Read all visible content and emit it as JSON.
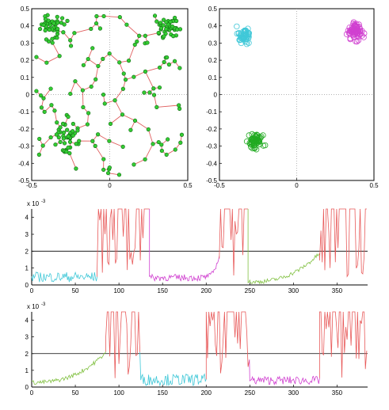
{
  "colors": {
    "green": "#22aa22",
    "green_fill": "#33cc33",
    "edge_red": "#e06060",
    "cyan": "#40c8d8",
    "magenta": "#d040d0",
    "green_plot": "#80c040",
    "red_plot": "#e85a5a",
    "threshold": "#000000"
  },
  "chart_data": [
    {
      "type": "scatter",
      "variant": "minimum-spanning-graph",
      "xlim": [
        -0.5,
        0.5
      ],
      "ylim": [
        -0.5,
        0.5
      ],
      "xticks": [
        "-0.5",
        "0",
        "0.5"
      ],
      "yticks": [
        "0.5",
        "0.4",
        "0.3",
        "0.2",
        "0.1",
        "0",
        "-0.1",
        "-0.2",
        "-0.3",
        "-0.4",
        "-0.5"
      ],
      "clusters": [
        {
          "cx": -0.38,
          "cy": 0.4,
          "r": 0.09,
          "n": 40
        },
        {
          "cx": 0.38,
          "cy": 0.38,
          "r": 0.09,
          "n": 40
        },
        {
          "cx": -0.27,
          "cy": -0.25,
          "r": 0.11,
          "n": 45
        }
      ],
      "background_points": 110
    },
    {
      "type": "scatter",
      "xlim": [
        -0.5,
        0.5
      ],
      "ylim": [
        -0.5,
        0.5
      ],
      "xticks": [
        "-0.5",
        "0",
        "0.5"
      ],
      "yticks": [
        "0.5",
        "0.4",
        "0.3",
        "0.2",
        "0.1",
        "0",
        "-0.1",
        "-0.2",
        "-0.3",
        "-0.4",
        "-0.5"
      ],
      "series": [
        {
          "color": "cyan",
          "cx": -0.34,
          "cy": 0.34,
          "r": 0.07,
          "n": 55
        },
        {
          "color": "magenta",
          "cx": 0.38,
          "cy": 0.37,
          "r": 0.085,
          "n": 70
        },
        {
          "color": "green",
          "cx": -0.27,
          "cy": -0.27,
          "r": 0.08,
          "n": 60
        }
      ]
    },
    {
      "type": "line",
      "multiplier_label": "x 10",
      "multiplier_exp": "-3",
      "xlim": [
        0,
        385
      ],
      "ylim": [
        0,
        4.5
      ],
      "xticks": [
        "0",
        "50",
        "100",
        "150",
        "200",
        "250",
        "300",
        "350"
      ],
      "yticks": [
        "0",
        "1",
        "2",
        "3",
        "4"
      ],
      "threshold": 2,
      "segments": [
        {
          "color": "cyan",
          "x0": 0,
          "x1": 75,
          "mode": "noise",
          "base": 0.35,
          "amp": 0.6
        },
        {
          "color": "red",
          "x0": 75,
          "x1": 135,
          "mode": "spiky"
        },
        {
          "color": "magenta",
          "x0": 135,
          "x1": 200,
          "mode": "noise",
          "base": 0.35,
          "amp": 0.4
        },
        {
          "color": "magenta",
          "x0": 200,
          "x1": 215,
          "mode": "rise",
          "base": 0.4,
          "amp": 1.2
        },
        {
          "color": "red",
          "x0": 215,
          "x1": 248,
          "mode": "spiky"
        },
        {
          "color": "green",
          "x0": 248,
          "x1": 330,
          "mode": "rise",
          "base": 0.05,
          "amp": 1.7
        },
        {
          "color": "red",
          "x0": 330,
          "x1": 385,
          "mode": "spiky"
        }
      ]
    },
    {
      "type": "line",
      "multiplier_label": "x 10",
      "multiplier_exp": "-3",
      "xlim": [
        0,
        385
      ],
      "ylim": [
        0,
        4.5
      ],
      "xticks": [
        "0",
        "50",
        "100",
        "150",
        "200",
        "250",
        "300",
        "350"
      ],
      "yticks": [
        "0",
        "1",
        "2",
        "3",
        "4"
      ],
      "threshold": 2,
      "segments": [
        {
          "color": "green",
          "x0": 0,
          "x1": 85,
          "mode": "rise",
          "base": 0.15,
          "amp": 1.8
        },
        {
          "color": "red",
          "x0": 85,
          "x1": 125,
          "mode": "spiky"
        },
        {
          "color": "cyan",
          "x0": 125,
          "x1": 200,
          "mode": "noise",
          "base": 0.3,
          "amp": 0.7
        },
        {
          "color": "red",
          "x0": 200,
          "x1": 250,
          "mode": "spiky"
        },
        {
          "color": "magenta",
          "x0": 250,
          "x1": 330,
          "mode": "noise",
          "base": 0.3,
          "amp": 0.5
        },
        {
          "color": "red",
          "x0": 330,
          "x1": 385,
          "mode": "spiky"
        }
      ]
    }
  ]
}
